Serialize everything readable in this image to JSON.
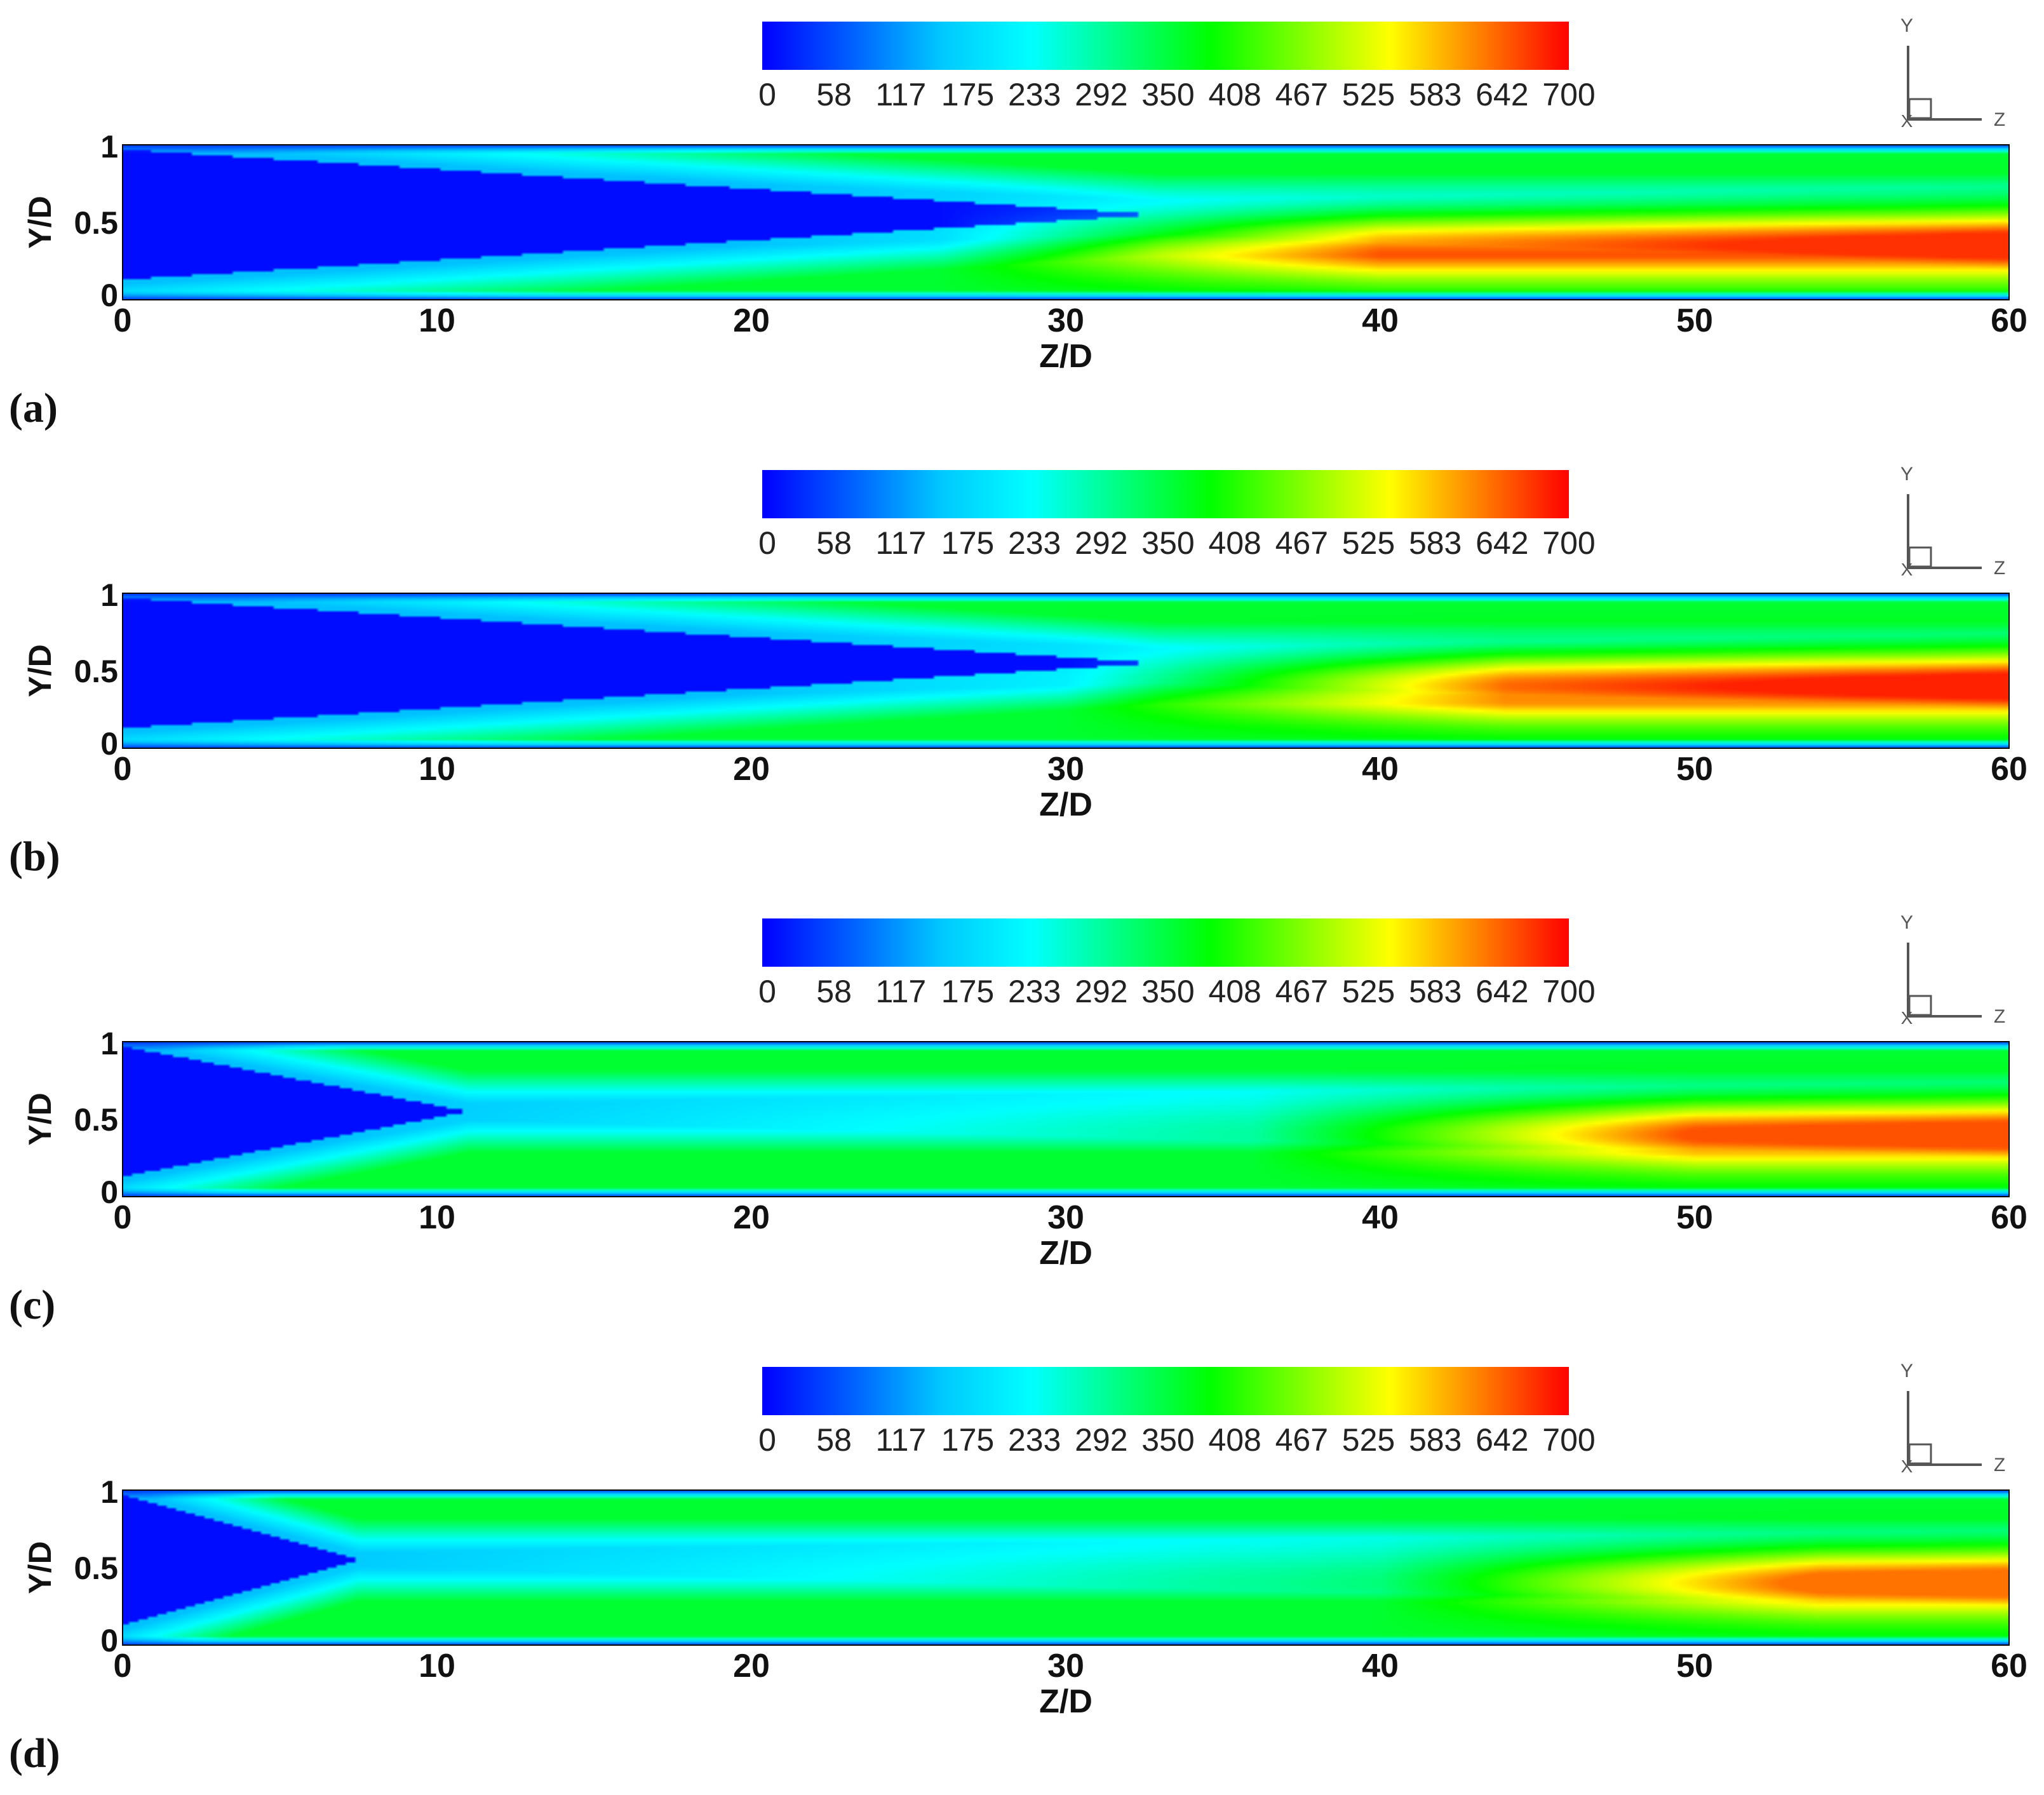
{
  "colorbar": {
    "ticks": [
      "0",
      "58",
      "117",
      "175",
      "233",
      "292",
      "350",
      "408",
      "467",
      "525",
      "583",
      "642",
      "700"
    ],
    "min": 0,
    "max": 700,
    "colors": [
      "#0000ff",
      "#0060ff",
      "#00c8ff",
      "#00ffff",
      "#00ff80",
      "#00ff00",
      "#80ff00",
      "#ffff00",
      "#ff8000",
      "#ff0000"
    ]
  },
  "axes_triad": {
    "y_label": "Y",
    "z_label": "Z",
    "x_label": "X"
  },
  "chart_data": [
    {
      "type": "heatmap",
      "panel_label": "(a)",
      "xlabel": "Z/D",
      "ylabel": "Y/D",
      "xlim": [
        0,
        60
      ],
      "ylim": [
        0,
        1
      ],
      "xticks": [
        "0",
        "10",
        "20",
        "30",
        "40",
        "50",
        "60"
      ],
      "yticks": [
        "0",
        "0.5",
        "1"
      ],
      "profile": {
        "cold_region_end_zd": 33,
        "hot_core_y": 0.35,
        "hot_start_zd": 34,
        "peak_value": 670
      }
    },
    {
      "type": "heatmap",
      "panel_label": "(b)",
      "xlabel": "Z/D",
      "ylabel": "Y/D",
      "xlim": [
        0,
        60
      ],
      "ylim": [
        0,
        1
      ],
      "xticks": [
        "0",
        "10",
        "20",
        "30",
        "40",
        "50",
        "60"
      ],
      "yticks": [
        "0",
        "0.5",
        "1"
      ],
      "profile": {
        "cold_region_end_zd": 33,
        "hot_core_y": 0.4,
        "hot_start_zd": 38,
        "peak_value": 680
      }
    },
    {
      "type": "heatmap",
      "panel_label": "(c)",
      "xlabel": "Z/D",
      "ylabel": "Y/D",
      "xlim": [
        0,
        60
      ],
      "ylim": [
        0,
        1
      ],
      "xticks": [
        "0",
        "10",
        "20",
        "30",
        "40",
        "50",
        "60"
      ],
      "yticks": [
        "0",
        "0.5",
        "1"
      ],
      "profile": {
        "cold_region_end_zd": 11,
        "hot_core_y": 0.4,
        "hot_start_zd": 44,
        "peak_value": 650
      }
    },
    {
      "type": "heatmap",
      "panel_label": "(d)",
      "xlabel": "Z/D",
      "ylabel": "Y/D",
      "xlim": [
        0,
        60
      ],
      "ylim": [
        0,
        1
      ],
      "xticks": [
        "0",
        "10",
        "20",
        "30",
        "40",
        "50",
        "60"
      ],
      "yticks": [
        "0",
        "0.5",
        "1"
      ],
      "profile": {
        "cold_region_end_zd": 7.5,
        "hot_core_y": 0.4,
        "hot_start_zd": 48,
        "peak_value": 630
      }
    }
  ]
}
